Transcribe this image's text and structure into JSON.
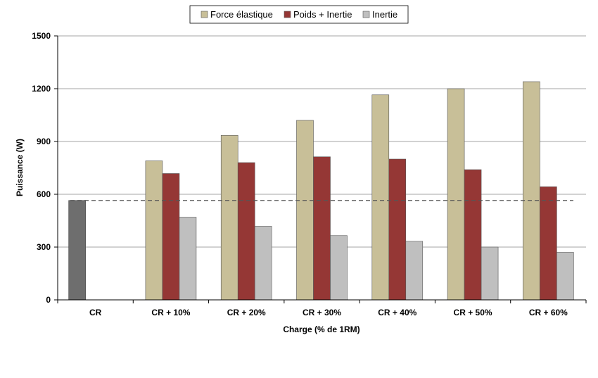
{
  "chart_data": {
    "type": "bar",
    "title": "",
    "xlabel": "Charge (% de 1RM)",
    "ylabel": "Puissance (W)",
    "ylim": [
      0,
      1500
    ],
    "yticks": [
      "0",
      "300",
      "600",
      "900",
      "1200",
      "1500"
    ],
    "grid": "horizontal",
    "legend_position": "top-center",
    "categories": [
      "CR",
      "CR + 10%",
      "CR + 20%",
      "CR + 30%",
      "CR + 40%",
      "CR + 50%",
      "CR + 60%"
    ],
    "series": [
      {
        "name": "Force élastique",
        "color": "#c8bf98",
        "values": [
          null,
          790,
          935,
          1020,
          1165,
          1200,
          1240
        ]
      },
      {
        "name": "Poids + Inertie",
        "color": "#953735",
        "values": [
          null,
          718,
          780,
          813,
          800,
          740,
          643
        ]
      },
      {
        "name": "Inertie",
        "color": "#bfbfbf",
        "values": [
          null,
          470,
          418,
          365,
          333,
          300,
          270
        ]
      }
    ],
    "baseline_bar": {
      "category": "CR",
      "value": 565,
      "color": "#6e6e6e"
    },
    "reference_line": {
      "value": 565,
      "style": "dashed",
      "color": "#555555"
    }
  }
}
